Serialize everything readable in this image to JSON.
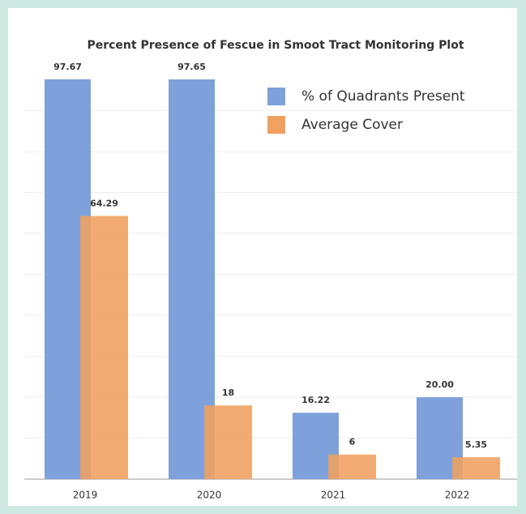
{
  "chart_data": {
    "type": "bar",
    "title": "Percent Presence of Fescue in Smoot Tract Monitoring Plot",
    "categories": [
      "2019",
      "2020",
      "2021",
      "2022"
    ],
    "series": [
      {
        "name": "% of Quadrants Present",
        "color": "#7ea1db",
        "values": [
          97.67,
          97.65,
          16.22,
          20.0
        ],
        "value_labels": [
          "97.67",
          "97.65",
          "16.22",
          "20.00"
        ]
      },
      {
        "name": "Average Cover",
        "color": "#f0a160",
        "values": [
          64.29,
          18,
          6,
          5.35
        ]
      }
    ],
    "ylim": [
      0,
      100
    ],
    "yticks": [
      0,
      10,
      20,
      30,
      40,
      50,
      60,
      70,
      80,
      90
    ],
    "grid": true,
    "legend": "top-right"
  }
}
